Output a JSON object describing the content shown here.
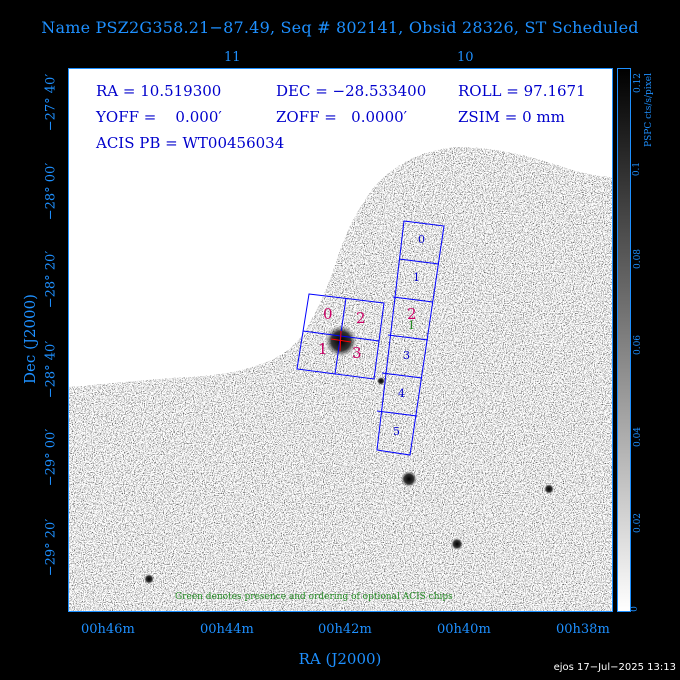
{
  "title": "Name PSZ2G358.21−87.49, Seq # 802141, Obsid 28326, ST Scheduled",
  "info": {
    "ra": "RA = 10.519300",
    "dec": "DEC = −28.533400",
    "roll": "ROLL = 97.1671",
    "yoff": "YOFF =    0.000′",
    "zoff": "ZOFF =   0.0000′",
    "zsim": "ZSIM = 0 mm",
    "acis_pb": "ACIS PB = WT00456034"
  },
  "top_ticks": [
    "11",
    "10"
  ],
  "x_ticks": [
    "00h46m",
    "00h44m",
    "00h42m",
    "00h40m",
    "00h38m"
  ],
  "y_ticks": [
    "−27° 40′",
    "−28° 00′",
    "−28° 20′",
    "−28° 40′",
    "−29° 00′",
    "−29° 20′"
  ],
  "x_axis_title": "RA (J2000)",
  "y_axis_title": "Dec (J2000)",
  "colorbar": {
    "title": "PSPC cts/s/pixel",
    "ticks": [
      "0",
      "0.02",
      "0.04",
      "0.06",
      "0.08",
      "0.1",
      "0.12"
    ]
  },
  "acis_i_labels": [
    "0",
    "2",
    "1",
    "3"
  ],
  "acis_s_labels": [
    "0",
    "1",
    "2",
    "3",
    "4",
    "5"
  ],
  "optional_chip_label": "1",
  "note": "Green denotes presence and ordering of optional ACIS chips",
  "footer": "ejos 17−Jul−2025 13:13",
  "colors": {
    "axis": "#1e90ff",
    "text": "#0000cc",
    "chip_i": "#cc0066",
    "optional": "#228b22"
  }
}
